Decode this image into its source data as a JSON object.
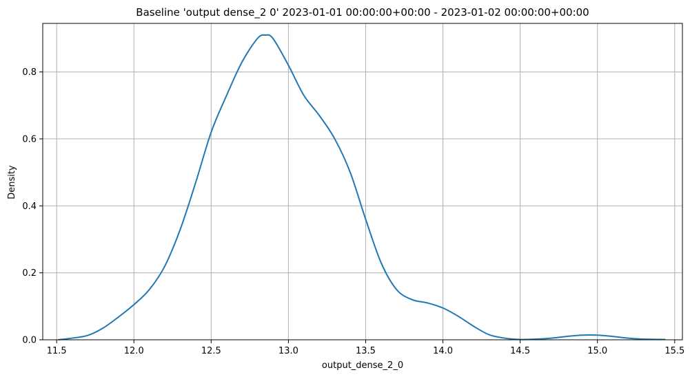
{
  "chart_data": {
    "type": "line",
    "title": "Baseline 'output dense_2 0' 2023-01-01 00:00:00+00:00 - 2023-01-02 00:00:00+00:00",
    "xlabel": "output_dense_2_0",
    "ylabel": "Density",
    "xlim": [
      11.41,
      15.55
    ],
    "ylim": [
      0,
      0.945
    ],
    "xticks": [
      11.5,
      12.0,
      12.5,
      13.0,
      13.5,
      14.0,
      14.5,
      15.0,
      15.5
    ],
    "xtick_labels": [
      "11.5",
      "12.0",
      "12.5",
      "13.0",
      "13.5",
      "14.0",
      "14.5",
      "15.0",
      "15.5"
    ],
    "yticks": [
      0.0,
      0.2,
      0.4,
      0.6,
      0.8
    ],
    "ytick_labels": [
      "0.0",
      "0.2",
      "0.4",
      "0.6",
      "0.8"
    ],
    "grid": true,
    "line_color": "#1f77b4",
    "series": [
      {
        "name": "",
        "x": [
          11.51,
          11.6,
          11.7,
          11.8,
          11.9,
          12.0,
          12.1,
          12.2,
          12.3,
          12.4,
          12.5,
          12.6,
          12.7,
          12.8,
          12.85,
          12.9,
          13.0,
          13.1,
          13.2,
          13.3,
          13.4,
          13.5,
          13.6,
          13.7,
          13.8,
          13.9,
          14.0,
          14.1,
          14.2,
          14.3,
          14.4,
          14.5,
          14.6,
          14.7,
          14.8,
          14.9,
          15.0,
          15.1,
          15.2,
          15.3,
          15.44
        ],
        "y": [
          0.0,
          0.005,
          0.013,
          0.035,
          0.068,
          0.105,
          0.15,
          0.22,
          0.33,
          0.47,
          0.62,
          0.73,
          0.83,
          0.9,
          0.91,
          0.9,
          0.82,
          0.73,
          0.67,
          0.6,
          0.5,
          0.36,
          0.23,
          0.15,
          0.12,
          0.11,
          0.095,
          0.07,
          0.04,
          0.015,
          0.005,
          0.001,
          0.002,
          0.005,
          0.01,
          0.014,
          0.014,
          0.01,
          0.005,
          0.002,
          0.001
        ]
      }
    ]
  }
}
